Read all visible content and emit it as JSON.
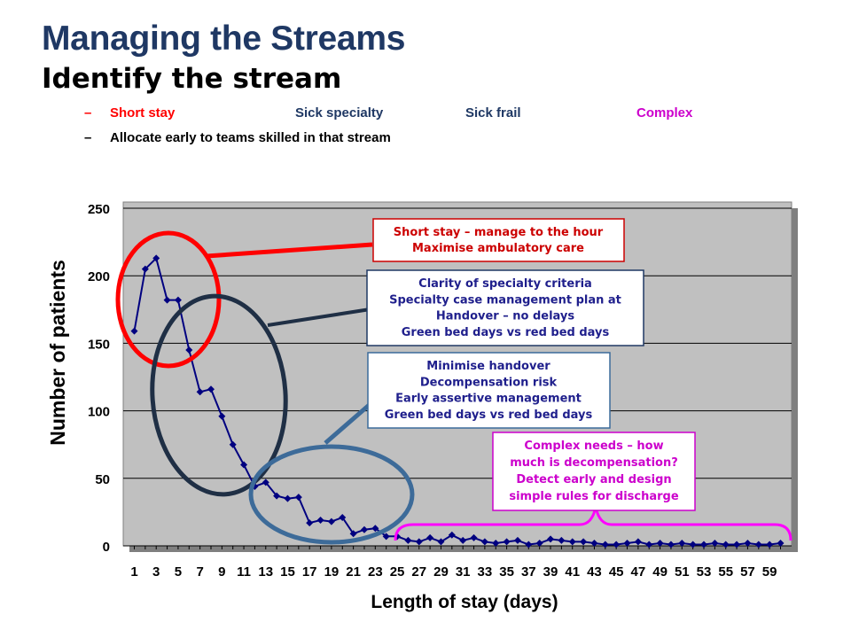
{
  "header": {
    "title": "Managing the Streams",
    "subtitle": "Identify the stream"
  },
  "bullets": {
    "row1": {
      "dash": "–",
      "items": [
        {
          "label": "Short stay",
          "color": "#ff0000"
        },
        {
          "label": "Sick specialty",
          "color": "#1f3864"
        },
        {
          "label": "Sick frail",
          "color": "#1f3864"
        },
        {
          "label": "Complex",
          "color": "#cc00cc"
        }
      ]
    },
    "row2": {
      "dash": "–",
      "label": "Allocate early to teams skilled in that stream"
    }
  },
  "annotations": [
    {
      "id": "short-stay",
      "lines": [
        "Short stay – manage to the hour",
        "Maximise ambulatory care"
      ],
      "text_color": "#cc0000",
      "border_color": "#cc0000",
      "shape_color": "#ff0000"
    },
    {
      "id": "specialty",
      "lines": [
        "Clarity of specialty criteria",
        "Specialty case management plan at",
        "Handover – no delays",
        "Green bed days vs red bed days"
      ],
      "text_color": "#1f1f8c",
      "border_color": "#1f3864",
      "shape_color": "#1f2f45"
    },
    {
      "id": "frail",
      "lines": [
        "Minimise handover",
        "Decompensation  risk",
        "Early assertive management",
        "Green bed days vs red bed days"
      ],
      "text_color": "#1f1f8c",
      "border_color": "#3a6a9a",
      "shape_color": "#3d6b99"
    },
    {
      "id": "complex",
      "lines": [
        "Complex needs – how",
        "much is decompensation?",
        "Detect early and design",
        "simple rules for discharge"
      ],
      "text_color": "#cc00cc",
      "border_color": "#cc00cc",
      "shape_color": "#ff00ff"
    }
  ],
  "chart_data": {
    "type": "line",
    "title": "",
    "xlabel": "Length of stay (days)",
    "ylabel": "Number of patients",
    "ylim": [
      0,
      250
    ],
    "yticks": [
      0,
      50,
      100,
      150,
      200,
      250
    ],
    "xlim": [
      1,
      60
    ],
    "xticks": [
      1,
      3,
      5,
      7,
      9,
      11,
      13,
      15,
      17,
      19,
      21,
      23,
      25,
      27,
      29,
      31,
      33,
      35,
      37,
      39,
      41,
      43,
      45,
      47,
      49,
      51,
      53,
      55,
      57,
      59
    ],
    "grid": true,
    "legend": "none",
    "series": [
      {
        "color": "#000080",
        "x": [
          1,
          2,
          3,
          4,
          5,
          6,
          7,
          8,
          9,
          10,
          11,
          12,
          13,
          14,
          15,
          16,
          17,
          18,
          19,
          20,
          21,
          22,
          23,
          24,
          25,
          26,
          27,
          28,
          29,
          30,
          31,
          32,
          33,
          34,
          35,
          36,
          37,
          38,
          39,
          40,
          41,
          42,
          43,
          44,
          45,
          46,
          47,
          48,
          49,
          50,
          51,
          52,
          53,
          54,
          55,
          56,
          57,
          58,
          59,
          60
        ],
        "values": [
          159,
          205,
          213,
          182,
          182,
          145,
          114,
          116,
          96,
          75,
          60,
          44,
          47,
          37,
          35,
          36,
          17,
          19,
          18,
          21,
          9,
          12,
          13,
          7,
          7,
          4,
          3,
          6,
          3,
          8,
          4,
          6,
          3,
          2,
          3,
          4,
          1,
          2,
          5,
          4,
          3,
          3,
          2,
          1,
          1,
          2,
          3,
          1,
          2,
          1,
          2,
          1,
          1,
          2,
          1,
          1,
          2,
          1,
          1,
          2
        ]
      }
    ]
  }
}
